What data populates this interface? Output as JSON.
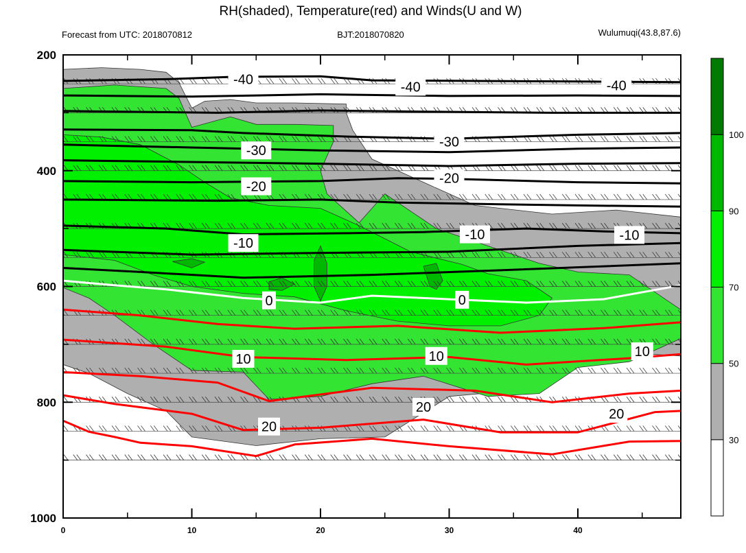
{
  "chart_data": {
    "type": "contour-cross-section",
    "title": "RH(shaded), Temperature(red) and Winds(U and W)",
    "subtitle_left": "Forecast from UTC: 2018070812",
    "subtitle_center": "BJT:2018070820",
    "subtitle_right": "Wulumuqi(43.8,87.6)",
    "x_ticks": [
      "0",
      "10",
      "20",
      "30",
      "40"
    ],
    "x_range": [
      0,
      48
    ],
    "y_ticks": [
      "200",
      "400",
      "600",
      "800",
      "1000"
    ],
    "y_range": [
      200,
      1000
    ],
    "colorbar_ticks": [
      "30",
      "50",
      "70",
      "90",
      "100"
    ],
    "colorbar_colors": [
      "#ffffff",
      "#afafaf",
      "#33e433",
      "#00f000",
      "#00b800",
      "#007a00"
    ],
    "rh_layers": [
      {
        "level": 30,
        "color": "#afafaf",
        "polygon": [
          [
            0,
            225
          ],
          [
            3,
            222
          ],
          [
            6,
            225
          ],
          [
            8,
            230
          ],
          [
            9,
            248
          ],
          [
            9.5,
            270
          ],
          [
            10,
            292
          ],
          [
            11,
            280
          ],
          [
            13,
            277
          ],
          [
            15,
            283
          ],
          [
            18,
            283
          ],
          [
            22,
            285
          ],
          [
            22,
            300
          ],
          [
            22.5,
            330
          ],
          [
            24,
            380
          ],
          [
            26,
            400
          ],
          [
            28,
            420
          ],
          [
            32,
            460
          ],
          [
            38,
            475
          ],
          [
            43,
            468
          ],
          [
            48,
            480
          ],
          [
            48,
            720
          ],
          [
            44,
            715
          ],
          [
            40,
            735
          ],
          [
            35,
            780
          ],
          [
            30,
            790
          ],
          [
            25,
            860
          ],
          [
            20,
            863
          ],
          [
            15,
            875
          ],
          [
            10,
            860
          ],
          [
            8,
            815
          ],
          [
            5,
            785
          ],
          [
            2,
            750
          ],
          [
            0,
            735
          ]
        ]
      },
      {
        "level": 50,
        "color": "#33e433",
        "polygon": [
          [
            0,
            258
          ],
          [
            4,
            252
          ],
          [
            8,
            258
          ],
          [
            9,
            275
          ],
          [
            9.5,
            300
          ],
          [
            10,
            325
          ],
          [
            12,
            313
          ],
          [
            13,
            307
          ],
          [
            15,
            320
          ],
          [
            18,
            320
          ],
          [
            21,
            322
          ],
          [
            21,
            350
          ],
          [
            20,
            400
          ],
          [
            20.5,
            440
          ],
          [
            22,
            470
          ],
          [
            23,
            490
          ],
          [
            25,
            440
          ],
          [
            27,
            470
          ],
          [
            29,
            500
          ],
          [
            33,
            530
          ],
          [
            37,
            560
          ],
          [
            40,
            575
          ],
          [
            44,
            580
          ],
          [
            48,
            640
          ],
          [
            48,
            690
          ],
          [
            44,
            730
          ],
          [
            40,
            740
          ],
          [
            37,
            785
          ],
          [
            33,
            790
          ],
          [
            28,
            755
          ],
          [
            24,
            768
          ],
          [
            20,
            790
          ],
          [
            16,
            795
          ],
          [
            14,
            748
          ],
          [
            10,
            745
          ],
          [
            7,
            700
          ],
          [
            4,
            650
          ],
          [
            2,
            620
          ],
          [
            0,
            602
          ]
        ]
      },
      {
        "level": 70,
        "color": "#00f000",
        "polygon": [
          [
            0,
            338
          ],
          [
            3,
            342
          ],
          [
            6,
            355
          ],
          [
            9,
            390
          ],
          [
            11,
            420
          ],
          [
            13,
            447
          ],
          [
            16,
            460
          ],
          [
            20,
            465
          ],
          [
            23,
            495
          ],
          [
            27,
            540
          ],
          [
            31,
            562
          ],
          [
            33,
            578
          ],
          [
            36,
            590
          ],
          [
            38,
            620
          ],
          [
            37,
            650
          ],
          [
            34,
            668
          ],
          [
            30,
            668
          ],
          [
            26,
            660
          ],
          [
            22,
            642
          ],
          [
            18,
            618
          ],
          [
            14,
            612
          ],
          [
            10,
            600
          ],
          [
            7,
            580
          ],
          [
            4,
            555
          ],
          [
            2,
            550
          ],
          [
            0,
            545
          ]
        ]
      },
      {
        "level": 90,
        "color": "#00b800",
        "polygon": [
          [
            19.5,
            555
          ],
          [
            20,
            530
          ],
          [
            20.5,
            560
          ],
          [
            20.5,
            600
          ],
          [
            20,
            625
          ],
          [
            19.5,
            600
          ]
        ]
      },
      {
        "level": 90,
        "color": "#00b800",
        "polygon": [
          [
            28,
            565
          ],
          [
            29,
            560
          ],
          [
            29.5,
            590
          ],
          [
            29,
            605
          ],
          [
            28.5,
            600
          ]
        ]
      },
      {
        "level": 90,
        "color": "#00b800",
        "polygon": [
          [
            16,
            592
          ],
          [
            17,
            585
          ],
          [
            18,
            596
          ],
          [
            17,
            607
          ],
          [
            16,
            605
          ]
        ]
      },
      {
        "level": 90,
        "color": "#00b800",
        "polygon": [
          [
            8.5,
            557
          ],
          [
            10,
            552
          ],
          [
            11,
            558
          ],
          [
            10,
            568
          ]
        ]
      }
    ],
    "isotherms": [
      {
        "value": -40,
        "color": "#000000",
        "points": [
          [
            0,
            245
          ],
          [
            8,
            242
          ],
          [
            13,
            238
          ],
          [
            20,
            237
          ],
          [
            24,
            244
          ],
          [
            32,
            245
          ],
          [
            40,
            246
          ],
          [
            48,
            247
          ]
        ]
      },
      {
        "value": -40,
        "color": "#000000",
        "points": [
          [
            0,
            270
          ],
          [
            10,
            272
          ],
          [
            20,
            268
          ],
          [
            30,
            271
          ],
          [
            40,
            270
          ],
          [
            48,
            271
          ]
        ]
      },
      {
        "value": -40,
        "color": "#000000",
        "points": [
          [
            0,
            297
          ],
          [
            12,
            300
          ],
          [
            20,
            296
          ],
          [
            28,
            298
          ],
          [
            38,
            300
          ],
          [
            48,
            300
          ]
        ]
      },
      {
        "value": -30,
        "color": "#000000",
        "points": [
          [
            0,
            329
          ],
          [
            10,
            330
          ],
          [
            14,
            335
          ],
          [
            22,
            341
          ],
          [
            30,
            345
          ],
          [
            40,
            338
          ],
          [
            48,
            335
          ]
        ]
      },
      {
        "value": -30,
        "color": "#000000",
        "points": [
          [
            0,
            355
          ],
          [
            10,
            360
          ],
          [
            20,
            365
          ],
          [
            30,
            368
          ],
          [
            40,
            362
          ],
          [
            48,
            360
          ]
        ]
      },
      {
        "value": -30,
        "color": "#000000",
        "points": [
          [
            0,
            382
          ],
          [
            10,
            385
          ],
          [
            20,
            388
          ],
          [
            30,
            392
          ],
          [
            40,
            388
          ],
          [
            48,
            387
          ]
        ]
      },
      {
        "value": -20,
        "color": "#000000",
        "points": [
          [
            0,
            418
          ],
          [
            10,
            420
          ],
          [
            20,
            418
          ],
          [
            26,
            413
          ],
          [
            30,
            414
          ],
          [
            40,
            420
          ],
          [
            48,
            422
          ]
        ]
      },
      {
        "value": -20,
        "color": "#000000",
        "points": [
          [
            0,
            450
          ],
          [
            12,
            452
          ],
          [
            20,
            450
          ],
          [
            26,
            455
          ],
          [
            34,
            458
          ],
          [
            40,
            460
          ],
          [
            48,
            462
          ]
        ]
      },
      {
        "value": -10,
        "color": "#000000",
        "points": [
          [
            0,
            495
          ],
          [
            8,
            500
          ],
          [
            14,
            510
          ],
          [
            22,
            508
          ],
          [
            28,
            506
          ],
          [
            36,
            500
          ],
          [
            42,
            505
          ],
          [
            48,
            508
          ]
        ]
      },
      {
        "value": -10,
        "color": "#000000",
        "points": [
          [
            0,
            537
          ],
          [
            10,
            545
          ],
          [
            20,
            542
          ],
          [
            30,
            540
          ],
          [
            40,
            530
          ],
          [
            48,
            525
          ]
        ]
      },
      {
        "value": -10,
        "color": "#000000",
        "points": [
          [
            0,
            568
          ],
          [
            6,
            575
          ],
          [
            14,
            585
          ],
          [
            24,
            580
          ],
          [
            34,
            572
          ],
          [
            48,
            560
          ]
        ]
      },
      {
        "value": 0,
        "color": "#ffffff",
        "points": [
          [
            0,
            590
          ],
          [
            4,
            598
          ],
          [
            8,
            605
          ],
          [
            14,
            620
          ],
          [
            20,
            628
          ],
          [
            24,
            616
          ],
          [
            30,
            622
          ],
          [
            36,
            628
          ],
          [
            42,
            622
          ],
          [
            48,
            598
          ]
        ]
      },
      {
        "value": 10,
        "color": "#ff0000",
        "points": [
          [
            0,
            640
          ],
          [
            6,
            650
          ],
          [
            12,
            665
          ],
          [
            18,
            673
          ],
          [
            26,
            668
          ],
          [
            34,
            680
          ],
          [
            42,
            672
          ],
          [
            48,
            662
          ]
        ]
      },
      {
        "value": 10,
        "color": "#ff0000",
        "points": [
          [
            0,
            692
          ],
          [
            8,
            704
          ],
          [
            14,
            722
          ],
          [
            22,
            727
          ],
          [
            30,
            722
          ],
          [
            36,
            735
          ],
          [
            44,
            724
          ],
          [
            48,
            717
          ]
        ]
      },
      {
        "value": 10,
        "color": "#ff0000",
        "points": [
          [
            0,
            748
          ],
          [
            6,
            755
          ],
          [
            12,
            766
          ],
          [
            16,
            798
          ],
          [
            24,
            775
          ],
          [
            32,
            780
          ],
          [
            38,
            800
          ],
          [
            44,
            785
          ],
          [
            48,
            780
          ]
        ]
      },
      {
        "value": 20,
        "color": "#ff0000",
        "points": [
          [
            0,
            788
          ],
          [
            4,
            803
          ],
          [
            10,
            820
          ],
          [
            14,
            848
          ],
          [
            20,
            844
          ],
          [
            28,
            830
          ],
          [
            34,
            852
          ],
          [
            40,
            852
          ],
          [
            46,
            817
          ],
          [
            48,
            815
          ]
        ]
      },
      {
        "value": 20,
        "color": "#ff0000",
        "points": [
          [
            0,
            832
          ],
          [
            2,
            851
          ],
          [
            4,
            860
          ],
          [
            6,
            870
          ],
          [
            10,
            876
          ],
          [
            15,
            893
          ],
          [
            18,
            873
          ],
          [
            24,
            863
          ],
          [
            30,
            876
          ],
          [
            38,
            890
          ],
          [
            44,
            868
          ],
          [
            48,
            867
          ]
        ]
      }
    ],
    "contour_labels": [
      {
        "text": "-40",
        "x": 14,
        "y": 242
      },
      {
        "text": "-40",
        "x": 27,
        "y": 255
      },
      {
        "text": "-40",
        "x": 43,
        "y": 253
      },
      {
        "text": "-30",
        "x": 15,
        "y": 365
      },
      {
        "text": "-30",
        "x": 30,
        "y": 350
      },
      {
        "text": "-20",
        "x": 15,
        "y": 427
      },
      {
        "text": "-20",
        "x": 30,
        "y": 413
      },
      {
        "text": "-10",
        "x": 14,
        "y": 525
      },
      {
        "text": "-10",
        "x": 32,
        "y": 510
      },
      {
        "text": "-10",
        "x": 44,
        "y": 511
      },
      {
        "text": "0",
        "x": 16,
        "y": 624
      },
      {
        "text": "0",
        "x": 31,
        "y": 623
      },
      {
        "text": "10",
        "x": 14,
        "y": 725
      },
      {
        "text": "10",
        "x": 29,
        "y": 720
      },
      {
        "text": "10",
        "x": 45,
        "y": 712
      },
      {
        "text": "20",
        "x": 16,
        "y": 842
      },
      {
        "text": "20",
        "x": 28,
        "y": 808
      },
      {
        "text": "20",
        "x": 43,
        "y": 820
      }
    ],
    "wind_barb_levels": [
      200,
      250,
      300,
      350,
      400,
      450,
      500,
      550,
      600,
      650,
      700,
      750,
      800,
      850,
      900
    ],
    "grid": false
  }
}
